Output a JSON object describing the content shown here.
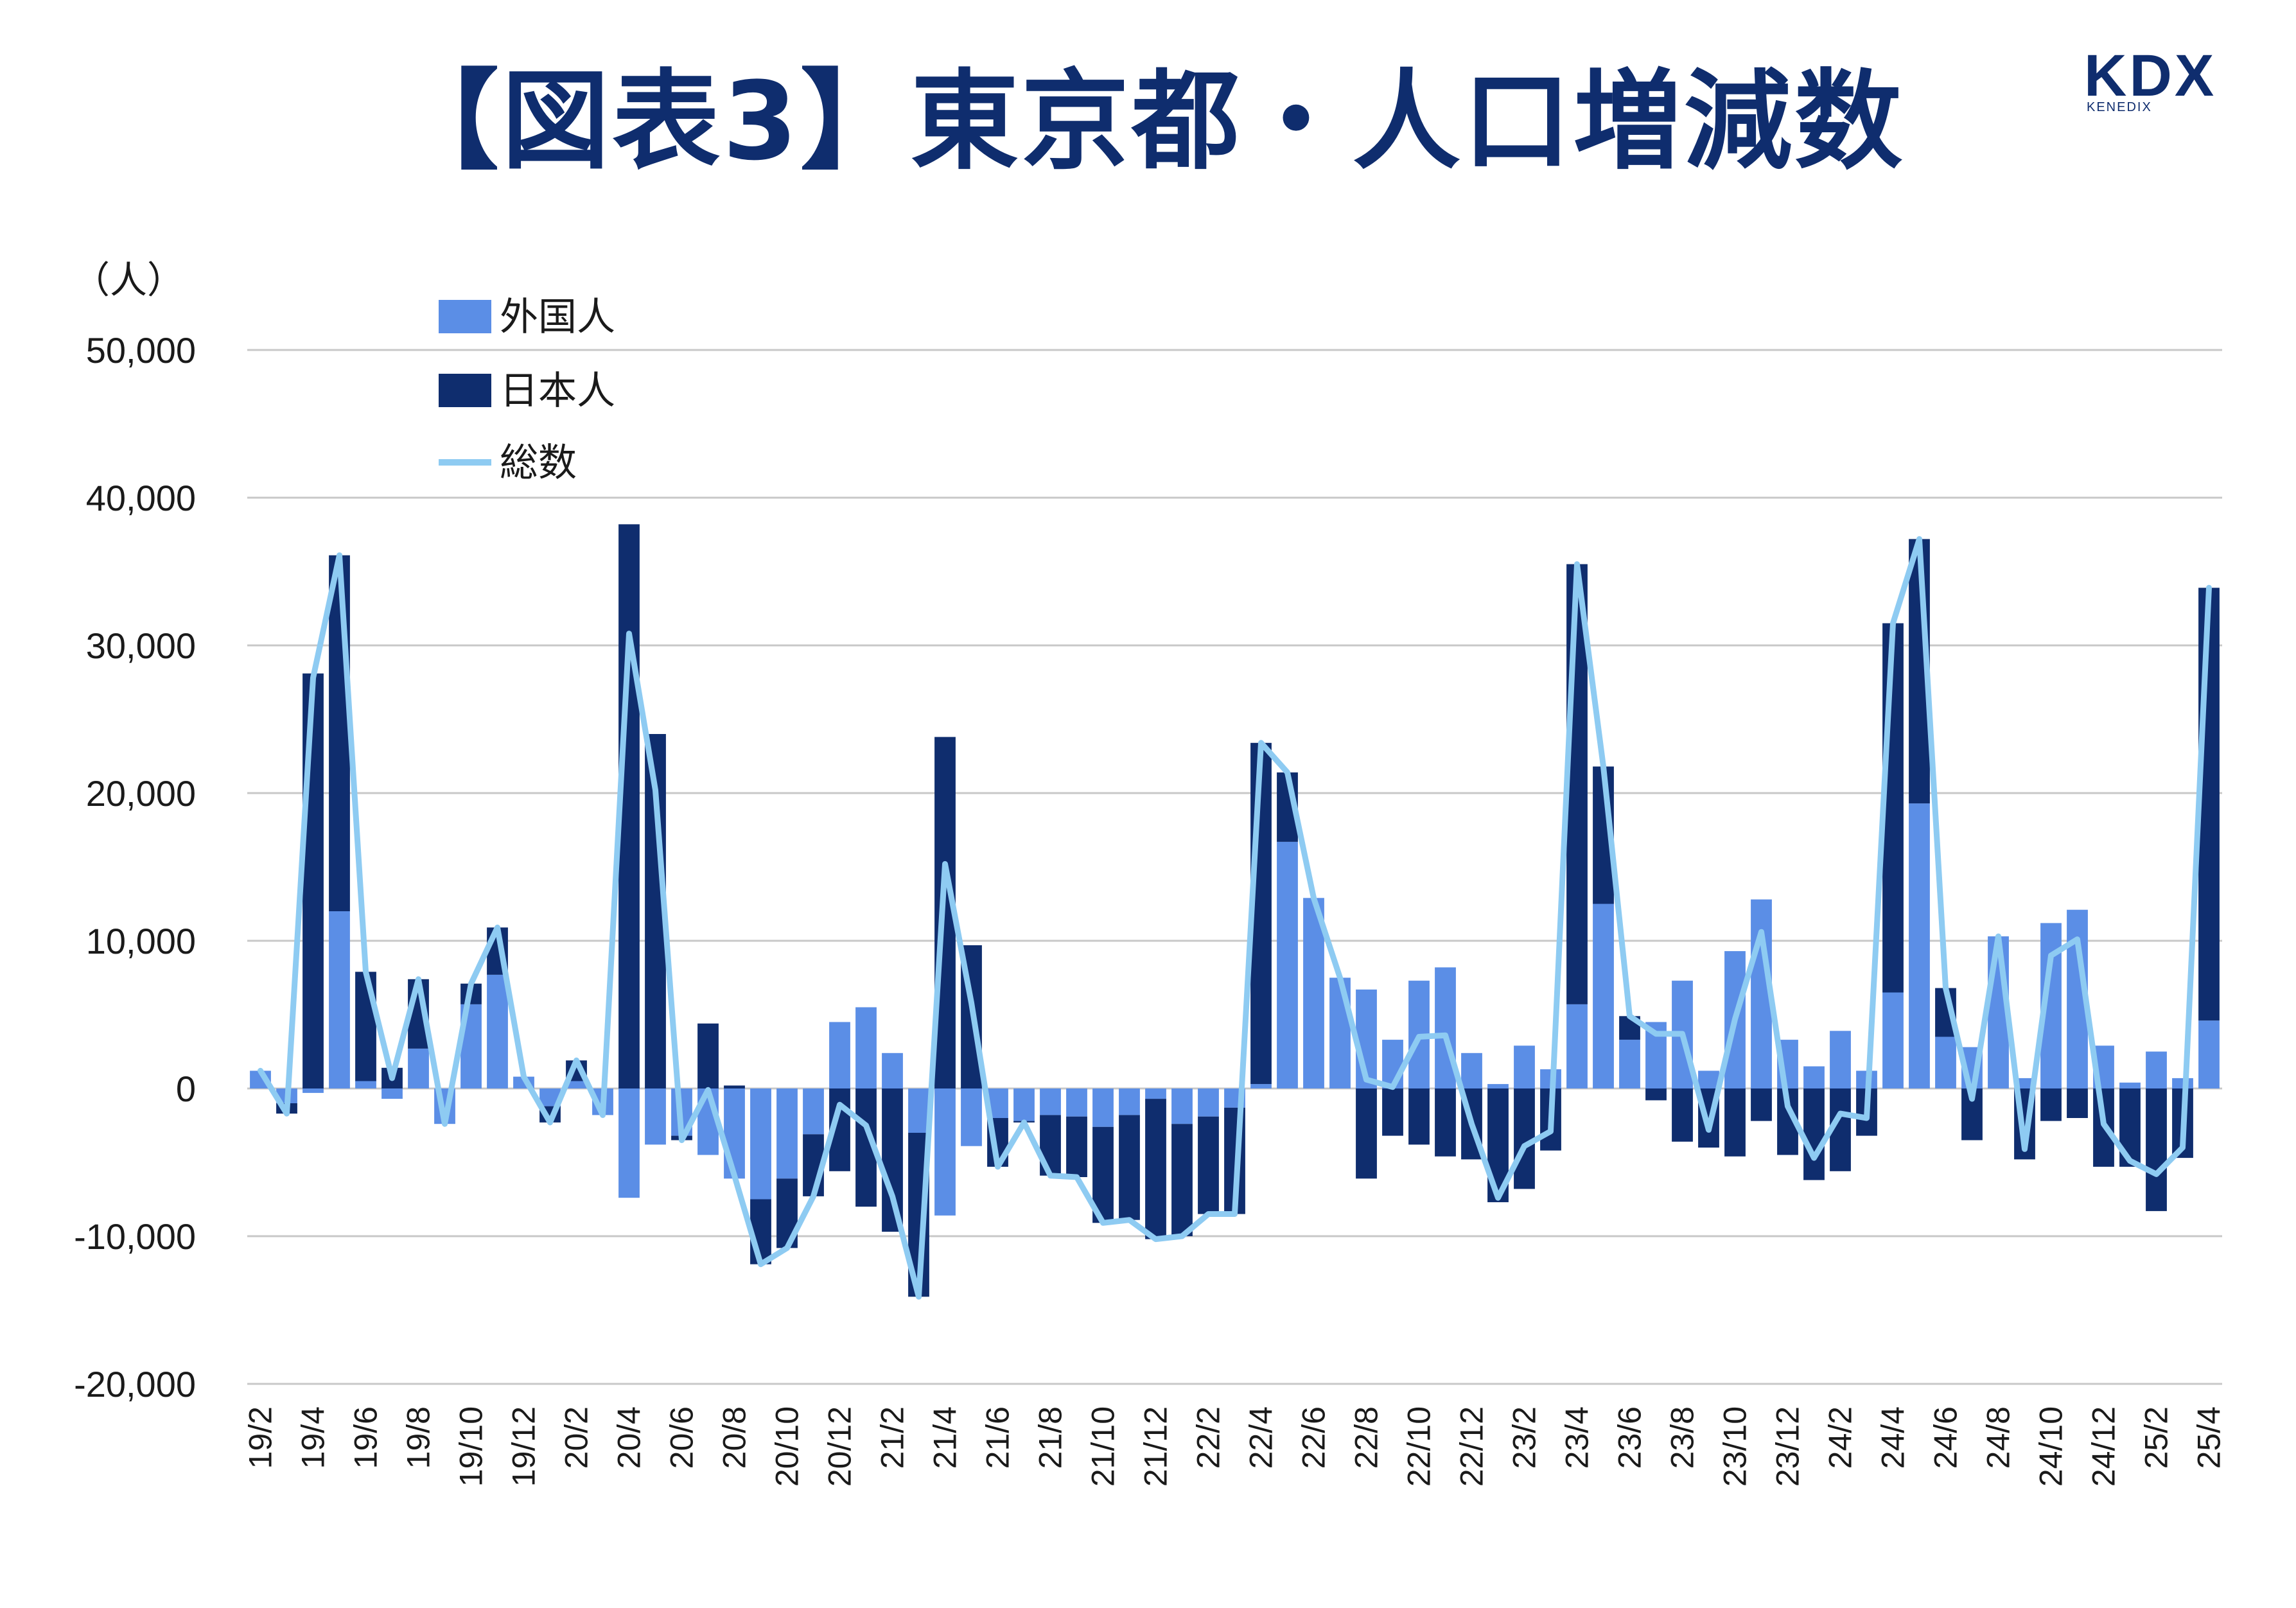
{
  "title": "【図表3】東京都・人口増減数",
  "logo": {
    "main": "KDX",
    "sub": "KENEDIX"
  },
  "colors": {
    "foreign": "#5b8ee6",
    "japanese": "#0f2d6e",
    "total": "#8ecbf2",
    "grid": "#c8c8c8",
    "title": "#0f2d6e"
  },
  "chart_data": {
    "type": "bar",
    "stacked": true,
    "unit_label": "（人）",
    "ylim": [
      -20000,
      50000
    ],
    "yticks": [
      50000,
      40000,
      30000,
      20000,
      10000,
      0,
      -10000,
      -20000
    ],
    "ytick_labels": [
      "50,000",
      "40,000",
      "30,000",
      "20,000",
      "10,000",
      "0",
      "-10,000",
      "-20,000"
    ],
    "grid": true,
    "legend_position": "top-left",
    "categories": [
      "19/2",
      "19/3",
      "19/4",
      "19/5",
      "19/6",
      "19/7",
      "19/8",
      "19/9",
      "19/10",
      "19/11",
      "19/12",
      "20/1",
      "20/2",
      "20/3",
      "20/4",
      "20/5",
      "20/6",
      "20/7",
      "20/8",
      "20/9",
      "20/10",
      "20/11",
      "20/12",
      "21/1",
      "21/2",
      "21/3",
      "21/4",
      "21/5",
      "21/6",
      "21/7",
      "21/8",
      "21/9",
      "21/10",
      "21/11",
      "21/12",
      "22/1",
      "22/2",
      "22/3",
      "22/4",
      "22/5",
      "22/6",
      "22/7",
      "22/8",
      "22/9",
      "22/10",
      "22/11",
      "22/12",
      "23/1",
      "23/2",
      "23/3",
      "23/4",
      "23/5",
      "23/6",
      "23/7",
      "23/8",
      "23/9",
      "23/10",
      "23/11",
      "23/12",
      "24/1",
      "24/2",
      "24/3",
      "24/4",
      "24/5",
      "24/6",
      "24/7",
      "24/8",
      "24/9",
      "24/10",
      "24/11",
      "24/12",
      "25/1",
      "25/2",
      "25/3",
      "25/4"
    ],
    "x_tick_labels": [
      "19/2",
      "",
      "19/4",
      "",
      "19/6",
      "",
      "19/8",
      "",
      "19/10",
      "",
      "19/12",
      "",
      "20/2",
      "",
      "20/4",
      "",
      "20/6",
      "",
      "20/8",
      "",
      "20/10",
      "",
      "20/12",
      "",
      "21/2",
      "",
      "21/4",
      "",
      "21/6",
      "",
      "21/8",
      "",
      "21/10",
      "",
      "21/12",
      "",
      "22/2",
      "",
      "22/4",
      "",
      "22/6",
      "",
      "22/8",
      "",
      "22/10",
      "",
      "22/12",
      "",
      "23/2",
      "",
      "23/4",
      "",
      "23/6",
      "",
      "23/8",
      "",
      "23/10",
      "",
      "23/12",
      "",
      "24/2",
      "",
      "24/4",
      "",
      "24/6",
      "",
      "24/8",
      "",
      "24/10",
      "",
      "24/12",
      "",
      "25/2",
      "",
      "25/4"
    ],
    "series": [
      {
        "name": "外国人",
        "kind": "bar",
        "values": [
          1200,
          -1000,
          -300,
          12000,
          500,
          -700,
          2700,
          -2400,
          5700,
          7700,
          800,
          -1200,
          500,
          -1800,
          -7400,
          -3800,
          -3200,
          -4500,
          -6100,
          -7500,
          -6100,
          -3100,
          4500,
          5500,
          2400,
          -3000,
          -8600,
          -3900,
          -2000,
          -2200,
          -1800,
          -1900,
          -2600,
          -1800,
          -700,
          -2400,
          -1900,
          -1300,
          300,
          16700,
          12900,
          7500,
          6700,
          3300,
          7300,
          8200,
          2400,
          300,
          2900,
          1300,
          5700,
          12500,
          3300,
          4500,
          7300,
          1200,
          9300,
          12800,
          3300,
          1500,
          3900,
          1200,
          6500,
          19300,
          3500,
          2800,
          10300,
          700,
          11200,
          12100,
          2900,
          400,
          2500,
          700,
          4600
        ]
      },
      {
        "name": "日本人",
        "kind": "bar",
        "values": [
          0,
          -700,
          28100,
          24100,
          7400,
          1400,
          4700,
          0,
          1400,
          3200,
          0,
          -1100,
          1400,
          0,
          38200,
          24000,
          -300,
          4400,
          200,
          -4400,
          -4700,
          -4200,
          -5600,
          -8000,
          -9700,
          -11100,
          23800,
          9700,
          -3300,
          -100,
          -4100,
          -4100,
          -6500,
          -7100,
          -9500,
          -7600,
          -6600,
          -7200,
          23100,
          4700,
          0,
          0,
          -6100,
          -3200,
          -3800,
          -4600,
          -4800,
          -7700,
          -6800,
          -4200,
          29800,
          9300,
          1600,
          -800,
          -3600,
          -4000,
          -4600,
          -2200,
          -4500,
          -6200,
          -5600,
          -3200,
          25000,
          17900,
          3300,
          -3500,
          0,
          -4800,
          -2200,
          -2000,
          -5300,
          -5300,
          -8300,
          -4700,
          29300
        ]
      },
      {
        "name": "総数",
        "kind": "line",
        "values": [
          1200,
          -1700,
          27800,
          36100,
          7900,
          700,
          7400,
          -2400,
          7100,
          10900,
          800,
          -2300,
          1900,
          -1800,
          30800,
          20200,
          -3500,
          -100,
          -5900,
          -11900,
          -10800,
          -7300,
          -1100,
          -2500,
          -7300,
          -14100,
          15200,
          5800,
          -5300,
          -2300,
          -5900,
          -6000,
          -9100,
          -8900,
          -10200,
          -10000,
          -8500,
          -8500,
          23400,
          21400,
          12900,
          7500,
          600,
          100,
          3500,
          3600,
          -2400,
          -7400,
          -3900,
          -2900,
          35500,
          21800,
          4900,
          3700,
          3700,
          -2800,
          4700,
          10600,
          -1200,
          -4700,
          -1700,
          -2000,
          31500,
          37200,
          6800,
          -700,
          10300,
          -4100,
          9000,
          10100,
          -2400,
          -4900,
          -5800,
          -4000,
          33900
        ]
      }
    ]
  }
}
